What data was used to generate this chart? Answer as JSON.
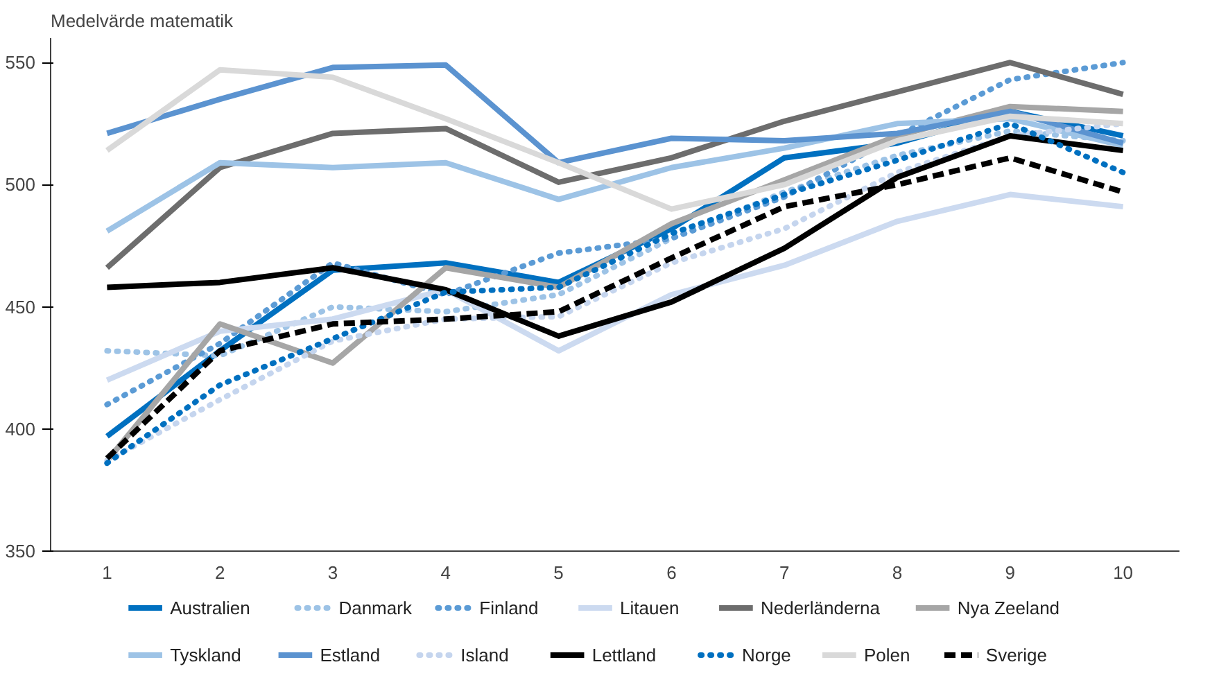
{
  "chart_data": {
    "type": "line",
    "ylabel": "Medelvärde matematik",
    "categories": [
      "1",
      "2",
      "3",
      "4",
      "5",
      "6",
      "7",
      "8",
      "9",
      "10"
    ],
    "ylim": [
      350,
      560
    ],
    "yticks": [
      350,
      400,
      450,
      500,
      550
    ],
    "grid": false,
    "legend": "bottom",
    "marker": "none",
    "series": [
      {
        "name": "Australien",
        "color": "#0070c0",
        "line_style": "solid",
        "values": [
          397,
          432,
          465,
          468,
          460,
          482,
          511,
          517,
          530,
          520
        ]
      },
      {
        "name": "Danmark",
        "color": "#9dc3e6",
        "line_style": "dotted",
        "values": [
          432,
          430,
          450,
          448,
          455,
          478,
          497,
          512,
          522,
          518
        ]
      },
      {
        "name": "Finland",
        "color": "#5b9bd5",
        "line_style": "dotted",
        "values": [
          410,
          435,
          468,
          455,
          472,
          478,
          495,
          520,
          543,
          550
        ]
      },
      {
        "name": "Litauen",
        "color": "#ccdaf0",
        "line_style": "solid",
        "values": [
          420,
          440,
          445,
          457,
          432,
          455,
          467,
          485,
          496,
          491
        ]
      },
      {
        "name": "Nederländerna",
        "color": "#6d6d6d",
        "line_style": "solid",
        "values": [
          466,
          507,
          521,
          523,
          501,
          511,
          526,
          538,
          550,
          537
        ]
      },
      {
        "name": "Nya Zeeland",
        "color": "#a6a6a6",
        "line_style": "solid",
        "values": [
          387,
          443,
          427,
          466,
          458,
          484,
          502,
          520,
          532,
          530
        ]
      },
      {
        "name": "Tyskland",
        "color": "#9dc3e6",
        "line_style": "solid",
        "values": [
          481,
          509,
          507,
          509,
          494,
          507,
          515,
          525,
          527,
          516
        ]
      },
      {
        "name": "Estland",
        "color": "#5b93d0",
        "line_style": "solid",
        "values": [
          521,
          535,
          548,
          549,
          509,
          519,
          518,
          521,
          530,
          517
        ]
      },
      {
        "name": "Island",
        "color": "#c5d5ee",
        "line_style": "dotted",
        "values": [
          387,
          412,
          436,
          445,
          446,
          468,
          482,
          505,
          520,
          525
        ]
      },
      {
        "name": "Lettland",
        "color": "#000000",
        "line_style": "solid",
        "values": [
          458,
          460,
          466,
          457,
          438,
          452,
          474,
          503,
          520,
          514
        ]
      },
      {
        "name": "Norge",
        "color": "#0070c0",
        "line_style": "dotted",
        "values": [
          386,
          418,
          437,
          456,
          458,
          480,
          496,
          510,
          525,
          505
        ]
      },
      {
        "name": "Polen",
        "color": "#d9d9d9",
        "line_style": "solid",
        "values": [
          514,
          547,
          544,
          527,
          509,
          490,
          500,
          518,
          528,
          525
        ]
      },
      {
        "name": "Sverige",
        "color": "#000000",
        "line_style": "dashed",
        "values": [
          388,
          432,
          443,
          445,
          448,
          470,
          491,
          500,
          511,
          497
        ]
      }
    ]
  }
}
